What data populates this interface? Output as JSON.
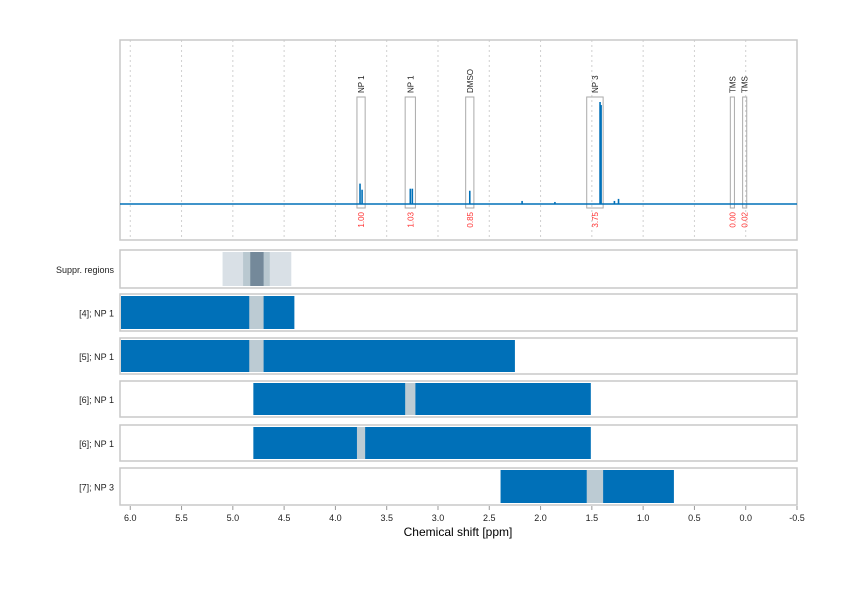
{
  "chart_data": {
    "type": "nmr-spectrum-with-region-tracks",
    "xlabel": "Chemical shift [ppm]",
    "xlim": [
      6.1,
      -0.5
    ],
    "x_reversed": true,
    "xticks": [
      "6.0",
      "5.5",
      "5.0",
      "4.5",
      "4.0",
      "3.5",
      "3.0",
      "2.5",
      "2.0",
      "1.5",
      "1.0",
      "0.5",
      "0.0",
      "-0.5"
    ],
    "xtick_values": [
      6.0,
      5.5,
      5.0,
      4.5,
      4.0,
      3.5,
      3.0,
      2.5,
      2.0,
      1.5,
      1.0,
      0.5,
      0.0,
      -0.5
    ],
    "grid": "vertical dashed",
    "colors": {
      "spectrum": "#0070b8",
      "integral_label": "#ff3333",
      "bar": "#0070b8",
      "bar_gap": "#bccbd3",
      "suppr_light": "#d9e0e6",
      "suppr_mid": "#b9c8d0",
      "suppr_dark": "#74899a"
    },
    "spectrum_peaks": [
      {
        "ppm": 3.76,
        "intensity": 0.2
      },
      {
        "ppm": 3.74,
        "intensity": 0.14
      },
      {
        "ppm": 3.27,
        "intensity": 0.15
      },
      {
        "ppm": 3.25,
        "intensity": 0.15
      },
      {
        "ppm": 2.69,
        "intensity": 0.13
      },
      {
        "ppm": 2.18,
        "intensity": 0.03
      },
      {
        "ppm": 1.86,
        "intensity": 0.02
      },
      {
        "ppm": 1.42,
        "intensity": 1.0
      },
      {
        "ppm": 1.41,
        "intensity": 0.97
      },
      {
        "ppm": 1.28,
        "intensity": 0.03
      },
      {
        "ppm": 1.24,
        "intensity": 0.05
      }
    ],
    "integration_regions": [
      {
        "label": "NP 1",
        "from": 3.79,
        "to": 3.71,
        "integral": "1.00"
      },
      {
        "label": "NP 1",
        "from": 3.32,
        "to": 3.22,
        "integral": "1.03"
      },
      {
        "label": "DMSO",
        "from": 2.73,
        "to": 2.65,
        "integral": "0.85"
      },
      {
        "label": "NP 3",
        "from": 1.55,
        "to": 1.39,
        "integral": "3.75"
      },
      {
        "label": "TMS",
        "from": 0.15,
        "to": 0.11,
        "integral": "0.00"
      },
      {
        "label": "TMS",
        "from": 0.03,
        "to": -0.01,
        "integral": "0.02"
      }
    ],
    "suppression": {
      "label": "Suppr. regions",
      "bands": [
        {
          "from": 5.1,
          "to": 4.43,
          "level": "light"
        },
        {
          "from": 4.9,
          "to": 4.64,
          "level": "mid"
        },
        {
          "from": 4.83,
          "to": 4.7,
          "level": "dark"
        }
      ]
    },
    "tracks": [
      {
        "label": "[4]; NP 1",
        "from": 6.1,
        "to": 4.4,
        "gap": [
          4.84,
          4.7
        ]
      },
      {
        "label": "[5]; NP 1",
        "from": 6.1,
        "to": 2.25,
        "gap": [
          4.84,
          4.7
        ]
      },
      {
        "label": "[6]; NP 1",
        "from": 4.8,
        "to": 1.51,
        "gap": [
          3.32,
          3.22
        ]
      },
      {
        "label": "[6]; NP 1",
        "from": 4.8,
        "to": 1.51,
        "gap": [
          3.79,
          3.71
        ]
      },
      {
        "label": "[7]; NP 3",
        "from": 2.39,
        "to": 0.7,
        "gap": [
          1.55,
          1.39
        ]
      }
    ]
  }
}
